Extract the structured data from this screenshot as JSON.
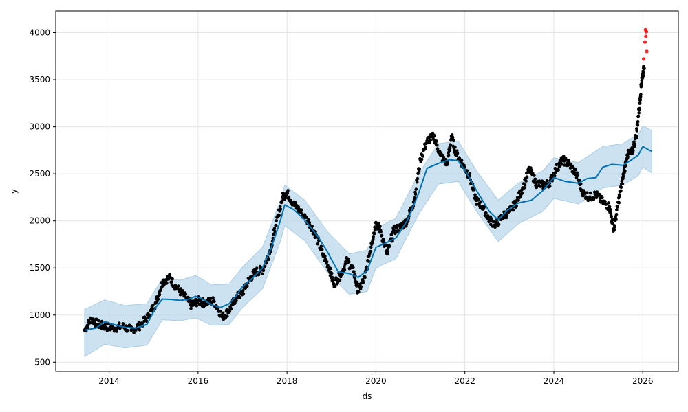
{
  "chart_data": {
    "type": "line",
    "title": "",
    "xlabel": "ds",
    "ylabel": "y",
    "xlim": [
      2012.8,
      2026.8
    ],
    "ylim": [
      400,
      4230
    ],
    "grid": true,
    "x_ticks": [
      2014,
      2016,
      2018,
      2020,
      2022,
      2024,
      2026
    ],
    "x_tick_labels": [
      "2014",
      "2016",
      "2018",
      "2020",
      "2022",
      "2024",
      "2026"
    ],
    "y_ticks": [
      500,
      1000,
      1500,
      2000,
      2500,
      3000,
      3500,
      4000
    ],
    "y_tick_labels": [
      "500",
      "1000",
      "1500",
      "2000",
      "2500",
      "3000",
      "3500",
      "4000"
    ],
    "colors": {
      "forecast": "#0072b2",
      "interval": "#b7d6ea",
      "observed": "#000000",
      "recent_observed": "#ff0000",
      "grid": "#e5e5e5"
    },
    "forecast_line": [
      [
        2013.45,
        840
      ],
      [
        2013.7,
        860
      ],
      [
        2013.9,
        930
      ],
      [
        2014.1,
        900
      ],
      [
        2014.35,
        870
      ],
      [
        2014.6,
        860
      ],
      [
        2014.85,
        900
      ],
      [
        2015.05,
        1080
      ],
      [
        2015.2,
        1170
      ],
      [
        2015.4,
        1165
      ],
      [
        2015.6,
        1155
      ],
      [
        2015.8,
        1170
      ],
      [
        2015.95,
        1200
      ],
      [
        2016.1,
        1170
      ],
      [
        2016.3,
        1110
      ],
      [
        2016.5,
        1080
      ],
      [
        2016.7,
        1120
      ],
      [
        2016.85,
        1200
      ],
      [
        2017.0,
        1300
      ],
      [
        2017.2,
        1380
      ],
      [
        2017.45,
        1500
      ],
      [
        2017.65,
        1720
      ],
      [
        2017.85,
        2000
      ],
      [
        2017.95,
        2170
      ],
      [
        2018.15,
        2120
      ],
      [
        2018.4,
        2010
      ],
      [
        2018.7,
        1830
      ],
      [
        2018.9,
        1680
      ],
      [
        2019.15,
        1460
      ],
      [
        2019.4,
        1440
      ],
      [
        2019.6,
        1400
      ],
      [
        2019.8,
        1470
      ],
      [
        2020.0,
        1720
      ],
      [
        2020.2,
        1760
      ],
      [
        2020.45,
        1820
      ],
      [
        2020.7,
        2000
      ],
      [
        2020.95,
        2280
      ],
      [
        2021.15,
        2560
      ],
      [
        2021.4,
        2610
      ],
      [
        2021.65,
        2650
      ],
      [
        2021.85,
        2640
      ],
      [
        2022.05,
        2500
      ],
      [
        2022.25,
        2330
      ],
      [
        2022.55,
        2100
      ],
      [
        2022.75,
        2010
      ],
      [
        2022.95,
        2110
      ],
      [
        2023.2,
        2190
      ],
      [
        2023.5,
        2220
      ],
      [
        2023.75,
        2320
      ],
      [
        2024.0,
        2460
      ],
      [
        2024.25,
        2420
      ],
      [
        2024.55,
        2400
      ],
      [
        2024.75,
        2450
      ],
      [
        2024.95,
        2460
      ],
      [
        2025.1,
        2570
      ],
      [
        2025.3,
        2600
      ],
      [
        2025.55,
        2590
      ],
      [
        2025.75,
        2650
      ],
      [
        2025.9,
        2700
      ],
      [
        2026.0,
        2790
      ],
      [
        2026.15,
        2750
      ],
      [
        2026.2,
        2740
      ]
    ],
    "interval_upper": [
      [
        2013.45,
        1060
      ],
      [
        2013.9,
        1160
      ],
      [
        2014.35,
        1100
      ],
      [
        2014.85,
        1120
      ],
      [
        2015.2,
        1390
      ],
      [
        2015.6,
        1370
      ],
      [
        2015.95,
        1420
      ],
      [
        2016.3,
        1320
      ],
      [
        2016.7,
        1330
      ],
      [
        2017.0,
        1510
      ],
      [
        2017.45,
        1720
      ],
      [
        2017.85,
        2210
      ],
      [
        2017.95,
        2380
      ],
      [
        2018.4,
        2220
      ],
      [
        2018.9,
        1890
      ],
      [
        2019.4,
        1650
      ],
      [
        2019.8,
        1690
      ],
      [
        2020.0,
        1920
      ],
      [
        2020.45,
        2030
      ],
      [
        2020.95,
        2490
      ],
      [
        2021.4,
        2820
      ],
      [
        2021.85,
        2850
      ],
      [
        2022.25,
        2540
      ],
      [
        2022.75,
        2220
      ],
      [
        2023.2,
        2400
      ],
      [
        2023.75,
        2530
      ],
      [
        2024.0,
        2670
      ],
      [
        2024.55,
        2620
      ],
      [
        2025.1,
        2790
      ],
      [
        2025.55,
        2820
      ],
      [
        2025.9,
        2920
      ],
      [
        2026.0,
        3010
      ],
      [
        2026.2,
        2960
      ]
    ],
    "interval_lower": [
      [
        2013.45,
        560
      ],
      [
        2013.9,
        690
      ],
      [
        2014.35,
        650
      ],
      [
        2014.85,
        680
      ],
      [
        2015.2,
        950
      ],
      [
        2015.6,
        940
      ],
      [
        2015.95,
        970
      ],
      [
        2016.3,
        890
      ],
      [
        2016.7,
        900
      ],
      [
        2017.0,
        1080
      ],
      [
        2017.45,
        1280
      ],
      [
        2017.85,
        1780
      ],
      [
        2017.95,
        1950
      ],
      [
        2018.4,
        1790
      ],
      [
        2018.9,
        1460
      ],
      [
        2019.4,
        1220
      ],
      [
        2019.8,
        1250
      ],
      [
        2020.0,
        1500
      ],
      [
        2020.45,
        1600
      ],
      [
        2020.95,
        2060
      ],
      [
        2021.4,
        2390
      ],
      [
        2021.85,
        2420
      ],
      [
        2022.25,
        2110
      ],
      [
        2022.75,
        1780
      ],
      [
        2023.2,
        1970
      ],
      [
        2023.75,
        2100
      ],
      [
        2024.0,
        2240
      ],
      [
        2024.55,
        2180
      ],
      [
        2025.1,
        2350
      ],
      [
        2025.55,
        2380
      ],
      [
        2025.9,
        2480
      ],
      [
        2026.0,
        2570
      ],
      [
        2026.2,
        2510
      ]
    ],
    "observed": [
      [
        2013.45,
        840
      ],
      [
        2013.6,
        960
      ],
      [
        2013.75,
        900
      ],
      [
        2013.9,
        880
      ],
      [
        2014.1,
        860
      ],
      [
        2014.3,
        880
      ],
      [
        2014.5,
        840
      ],
      [
        2014.7,
        890
      ],
      [
        2014.9,
        1000
      ],
      [
        2015.05,
        1130
      ],
      [
        2015.2,
        1350
      ],
      [
        2015.35,
        1400
      ],
      [
        2015.5,
        1300
      ],
      [
        2015.7,
        1200
      ],
      [
        2015.85,
        1100
      ],
      [
        2016.0,
        1150
      ],
      [
        2016.15,
        1130
      ],
      [
        2016.35,
        1150
      ],
      [
        2016.55,
        980
      ],
      [
        2016.7,
        1050
      ],
      [
        2016.85,
        1180
      ],
      [
        2017.0,
        1240
      ],
      [
        2017.15,
        1380
      ],
      [
        2017.3,
        1460
      ],
      [
        2017.45,
        1480
      ],
      [
        2017.6,
        1650
      ],
      [
        2017.75,
        1950
      ],
      [
        2017.9,
        2250
      ],
      [
        2018.0,
        2300
      ],
      [
        2018.15,
        2180
      ],
      [
        2018.3,
        2100
      ],
      [
        2018.5,
        1980
      ],
      [
        2018.65,
        1850
      ],
      [
        2018.8,
        1650
      ],
      [
        2018.95,
        1500
      ],
      [
        2019.05,
        1330
      ],
      [
        2019.2,
        1420
      ],
      [
        2019.35,
        1580
      ],
      [
        2019.5,
        1460
      ],
      [
        2019.6,
        1250
      ],
      [
        2019.75,
        1400
      ],
      [
        2019.9,
        1760
      ],
      [
        2020.0,
        1980
      ],
      [
        2020.1,
        1900
      ],
      [
        2020.25,
        1650
      ],
      [
        2020.4,
        1900
      ],
      [
        2020.55,
        1930
      ],
      [
        2020.7,
        2000
      ],
      [
        2020.85,
        2200
      ],
      [
        2021.0,
        2650
      ],
      [
        2021.15,
        2850
      ],
      [
        2021.3,
        2900
      ],
      [
        2021.45,
        2700
      ],
      [
        2021.6,
        2600
      ],
      [
        2021.7,
        2900
      ],
      [
        2021.8,
        2720
      ],
      [
        2021.95,
        2600
      ],
      [
        2022.1,
        2480
      ],
      [
        2022.25,
        2220
      ],
      [
        2022.4,
        2150
      ],
      [
        2022.55,
        2010
      ],
      [
        2022.7,
        1960
      ],
      [
        2022.85,
        2050
      ],
      [
        2023.0,
        2100
      ],
      [
        2023.15,
        2190
      ],
      [
        2023.3,
        2350
      ],
      [
        2023.45,
        2550
      ],
      [
        2023.6,
        2400
      ],
      [
        2023.75,
        2380
      ],
      [
        2023.9,
        2400
      ],
      [
        2024.05,
        2550
      ],
      [
        2024.2,
        2650
      ],
      [
        2024.35,
        2600
      ],
      [
        2024.5,
        2500
      ],
      [
        2024.65,
        2300
      ],
      [
        2024.8,
        2250
      ],
      [
        2024.95,
        2280
      ],
      [
        2025.1,
        2200
      ],
      [
        2025.25,
        2150
      ],
      [
        2025.35,
        1900
      ],
      [
        2025.45,
        2200
      ],
      [
        2025.55,
        2450
      ],
      [
        2025.65,
        2700
      ],
      [
        2025.75,
        2720
      ],
      [
        2025.85,
        2900
      ],
      [
        2025.93,
        3250
      ],
      [
        2025.98,
        3520
      ],
      [
        2026.03,
        3620
      ]
    ],
    "recent_observed": [
      [
        2026.02,
        3720
      ],
      [
        2026.05,
        3900
      ],
      [
        2026.06,
        4030
      ],
      [
        2026.07,
        3960
      ],
      [
        2026.08,
        4010
      ],
      [
        2026.09,
        3800
      ]
    ]
  }
}
